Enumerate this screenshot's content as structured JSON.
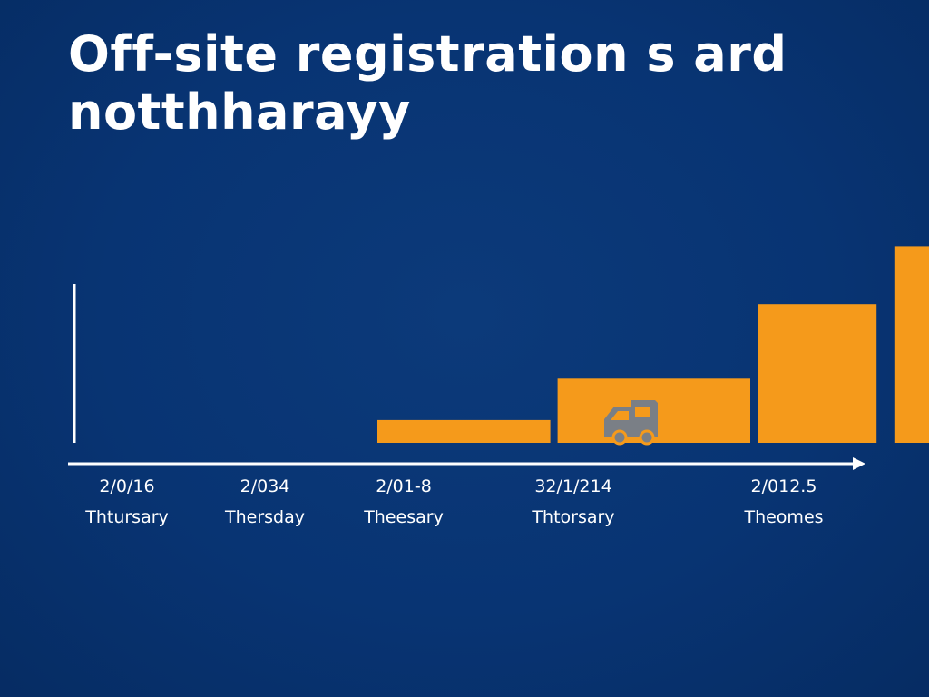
{
  "title": {
    "line1": "Off-site registration s ard",
    "line2": "notthharayy"
  },
  "colors": {
    "background": "#083473",
    "bar": "#f59a1b",
    "axis": "#ffffff",
    "truck_icon": "#7a7f86"
  },
  "icons": [
    "truck-icon"
  ],
  "chart_data": {
    "type": "bar",
    "title": "Off-site registration s ard notthharayy",
    "xlabel": "",
    "ylabel": "",
    "grid": false,
    "legend": "none",
    "ylim": [
      0,
      100
    ],
    "categories": [
      {
        "date": "2/0/16",
        "day": "Thtursary"
      },
      {
        "date": "2/034",
        "day": "Thersday"
      },
      {
        "date": "2/01-8",
        "day": "Theesary"
      },
      {
        "date": "32/1/214",
        "day": "Thtorsary"
      },
      {
        "date": "2/012.5",
        "day": "Theomes"
      }
    ],
    "bars": [
      {
        "x_start": 2.0,
        "x_end": 3.05,
        "value": 11
      },
      {
        "x_start": 3.05,
        "x_end": 4.0,
        "value": 31
      },
      {
        "x_start": 4.0,
        "x_end": 4.6,
        "value": 67
      },
      {
        "x_start": 4.65,
        "x_end": 5.25,
        "value": 95
      }
    ]
  }
}
